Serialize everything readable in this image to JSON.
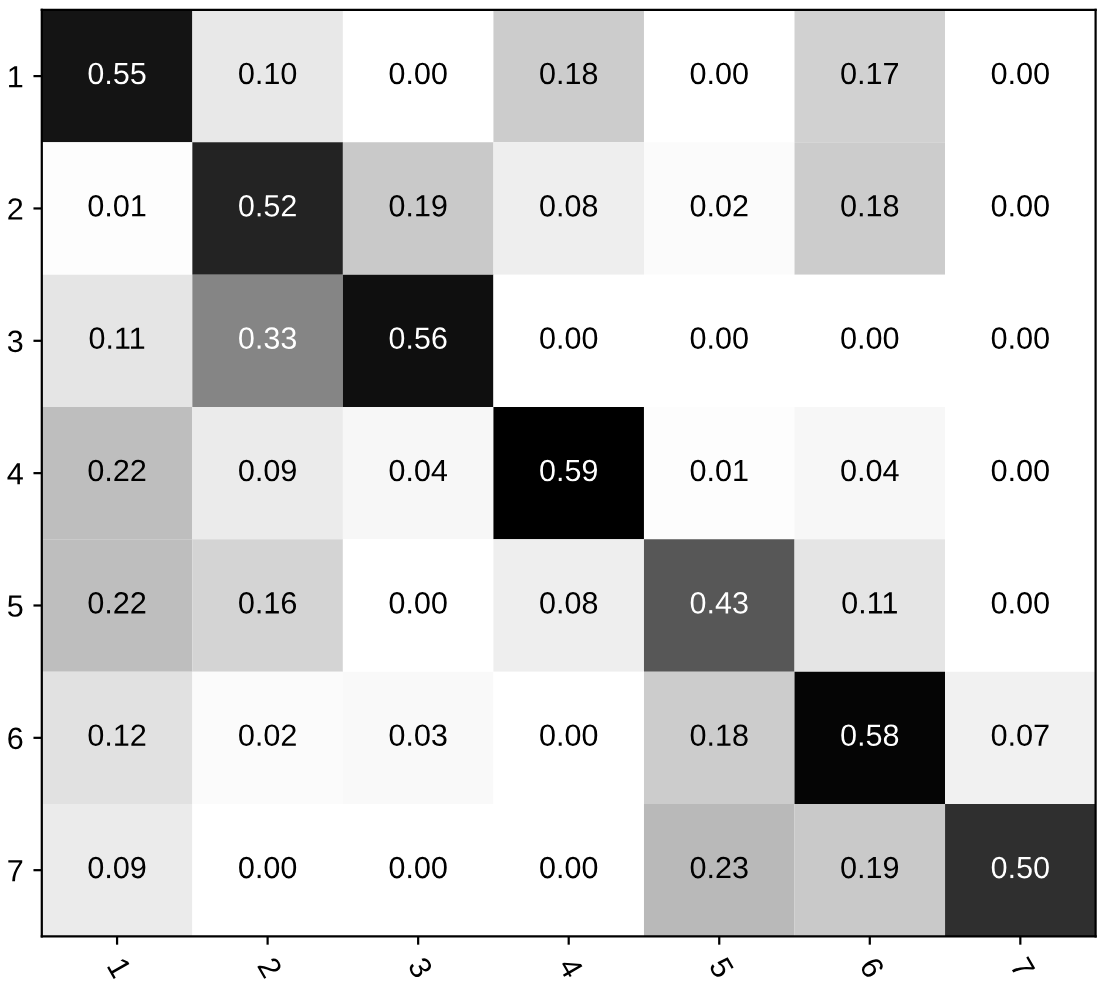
{
  "chart_data": {
    "type": "heatmap",
    "categories": [
      "1",
      "2",
      "3",
      "4",
      "5",
      "6",
      "7"
    ],
    "y_categories": [
      "1",
      "2",
      "3",
      "4",
      "5",
      "6",
      "7"
    ],
    "cells": [
      [
        0.55,
        0.1,
        0.0,
        0.18,
        0.0,
        0.17,
        0.0
      ],
      [
        0.01,
        0.52,
        0.19,
        0.08,
        0.02,
        0.18,
        0.0
      ],
      [
        0.11,
        0.33,
        0.56,
        0.0,
        0.0,
        0.0,
        0.0
      ],
      [
        0.22,
        0.09,
        0.04,
        0.59,
        0.01,
        0.04,
        0.0
      ],
      [
        0.22,
        0.16,
        0.0,
        0.08,
        0.43,
        0.11,
        0.0
      ],
      [
        0.12,
        0.02,
        0.03,
        0.0,
        0.18,
        0.58,
        0.07
      ],
      [
        0.09,
        0.0,
        0.0,
        0.0,
        0.23,
        0.19,
        0.5
      ]
    ],
    "cell_labels": [
      [
        "0.55",
        "0.10",
        "0.00",
        "0.18",
        "0.00",
        "0.17",
        "0.00"
      ],
      [
        "0.01",
        "0.52",
        "0.19",
        "0.08",
        "0.02",
        "0.18",
        "0.00"
      ],
      [
        "0.11",
        "0.33",
        "0.56",
        "0.00",
        "0.00",
        "0.00",
        "0.00"
      ],
      [
        "0.22",
        "0.09",
        "0.04",
        "0.59",
        "0.01",
        "0.04",
        "0.00"
      ],
      [
        "0.22",
        "0.16",
        "0.00",
        "0.08",
        "0.43",
        "0.11",
        "0.00"
      ],
      [
        "0.12",
        "0.02",
        "0.03",
        "0.00",
        "0.18",
        "0.58",
        "0.07"
      ],
      [
        "0.09",
        "0.00",
        "0.00",
        "0.00",
        "0.23",
        "0.19",
        "0.50"
      ]
    ]
  }
}
